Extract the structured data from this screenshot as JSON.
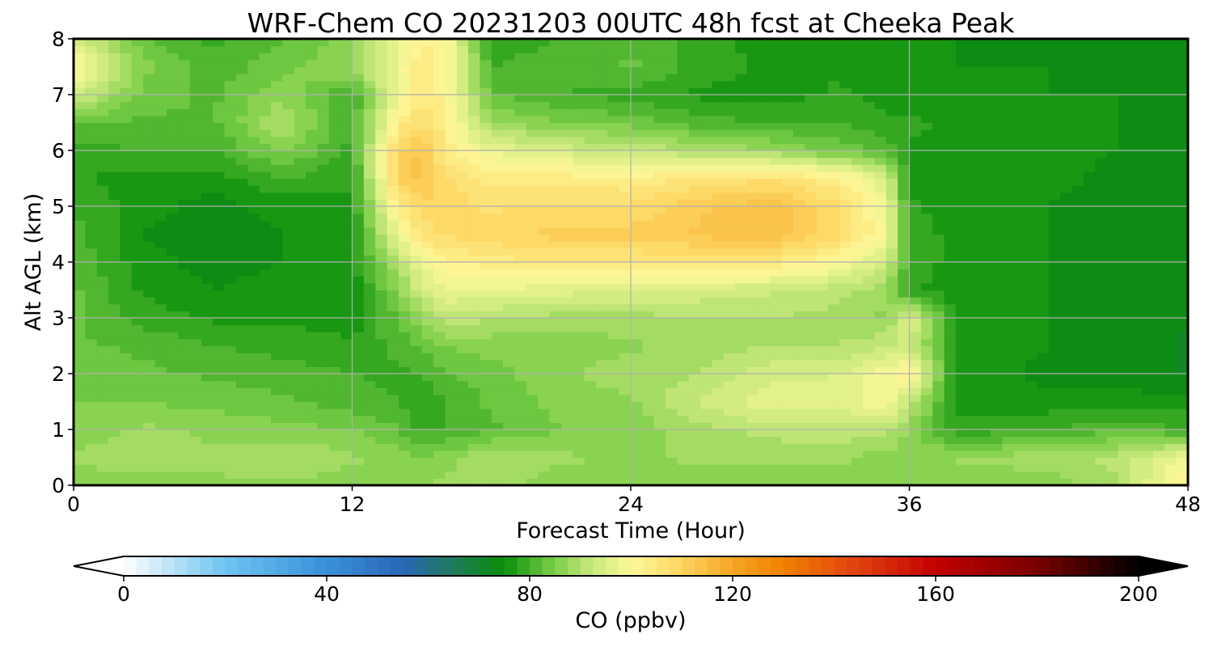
{
  "chart_data": {
    "type": "heatmap",
    "title": "WRF-Chem CO  20231203 00UTC 48h fcst at Cheeka Peak",
    "xlabel": "Forecast Time (Hour)",
    "ylabel": "Alt AGL (km)",
    "xlim": [
      0,
      48
    ],
    "ylim": [
      0,
      8
    ],
    "xticks": [
      0,
      12,
      24,
      36,
      48
    ],
    "yticks": [
      0,
      1,
      2,
      3,
      4,
      5,
      6,
      7,
      8
    ],
    "grid": true,
    "x": [
      0,
      3,
      6,
      9,
      12,
      14,
      15,
      16,
      18,
      21,
      24,
      27,
      30,
      33,
      35,
      36,
      38,
      42,
      45,
      48
    ],
    "y": [
      0,
      0.5,
      1,
      1.5,
      2,
      2.5,
      3,
      3.5,
      4,
      4.5,
      5,
      5.5,
      6,
      6.5,
      7,
      7.5,
      8
    ],
    "values": [
      [
        86,
        86,
        87,
        87,
        86,
        86,
        87,
        88,
        89,
        86,
        85,
        86,
        86,
        86,
        86,
        85,
        85,
        86,
        89,
        104
      ],
      [
        88,
        89,
        88,
        90,
        88,
        86,
        85,
        86,
        90,
        88,
        87,
        88,
        88,
        88,
        86,
        86,
        88,
        89,
        91,
        98
      ],
      [
        86,
        88,
        87,
        86,
        85,
        83,
        79,
        80,
        82,
        85,
        86,
        89,
        91,
        92,
        91,
        87,
        78,
        80,
        82,
        80
      ],
      [
        85,
        85,
        84,
        83,
        81,
        80,
        78,
        80,
        83,
        86,
        87,
        93,
        97,
        96,
        100,
        92,
        77,
        76,
        76,
        76
      ],
      [
        84,
        83,
        82,
        81,
        80,
        79,
        80,
        82,
        84,
        87,
        89,
        90,
        94,
        95,
        99,
        102,
        77,
        74,
        74,
        72
      ],
      [
        83,
        82,
        80,
        79,
        78,
        81,
        83,
        85,
        86,
        86,
        87,
        89,
        90,
        90,
        92,
        93,
        77,
        75,
        74,
        72
      ],
      [
        83,
        79,
        77,
        77,
        76,
        83,
        87,
        92,
        90,
        89,
        89,
        90,
        90,
        89,
        87,
        96,
        76,
        75,
        73,
        73
      ],
      [
        83,
        77,
        75,
        76,
        76,
        86,
        94,
        97,
        97,
        96,
        95,
        94,
        93,
        91,
        88,
        78,
        76,
        75,
        74,
        73
      ],
      [
        82,
        76,
        74,
        75,
        76,
        91,
        98,
        102,
        104,
        105,
        105,
        106,
        105,
        100,
        94,
        80,
        76,
        75,
        73,
        73
      ],
      [
        81,
        75,
        73,
        75,
        76,
        98,
        106,
        108,
        109,
        111,
        111,
        113,
        115,
        108,
        100,
        80,
        76,
        75,
        73,
        73
      ],
      [
        80,
        76,
        74,
        76,
        77,
        104,
        109,
        109,
        107,
        108,
        108,
        112,
        114,
        108,
        98,
        78,
        76,
        75,
        73,
        74
      ],
      [
        78,
        76,
        76,
        80,
        78,
        110,
        114,
        108,
        104,
        104,
        103,
        106,
        107,
        103,
        94,
        77,
        76,
        76,
        74,
        74
      ],
      [
        79,
        80,
        80,
        86,
        79,
        110,
        113,
        104,
        97,
        94,
        92,
        90,
        88,
        84,
        82,
        77,
        76,
        76,
        75,
        74
      ],
      [
        83,
        82,
        82,
        90,
        80,
        103,
        108,
        103,
        88,
        85,
        84,
        81,
        80,
        80,
        78,
        78,
        77,
        76,
        75,
        74
      ],
      [
        94,
        84,
        82,
        87,
        80,
        98,
        104,
        102,
        83,
        80,
        79,
        77,
        76,
        78,
        76,
        76,
        76,
        75,
        75,
        74
      ],
      [
        102,
        86,
        81,
        84,
        88,
        99,
        104,
        101,
        80,
        81,
        83,
        79,
        77,
        77,
        76,
        76,
        75,
        75,
        74,
        73
      ],
      [
        94,
        83,
        79,
        82,
        86,
        96,
        103,
        100,
        79,
        80,
        82,
        79,
        76,
        76,
        76,
        76,
        75,
        74,
        73,
        73
      ]
    ],
    "colorbar": {
      "label": "CO  (ppbv)",
      "min": 0,
      "max": 200,
      "ticks": [
        0,
        40,
        80,
        120,
        160,
        200
      ],
      "extend": "both",
      "orientation": "horizontal",
      "colors": {
        "0": "#ffffff",
        "20": "#6ec4f0",
        "40": "#3a90d8",
        "55": "#2966b8",
        "65": "#1f7a5a",
        "75": "#0a8f0a",
        "85": "#7ccf48",
        "92": "#c6e87a",
        "100": "#fdf89a",
        "110": "#fdd460",
        "120": "#f5a623",
        "130": "#f08000",
        "145": "#e04010",
        "160": "#c40000",
        "180": "#7a0000",
        "200": "#000000"
      }
    }
  }
}
